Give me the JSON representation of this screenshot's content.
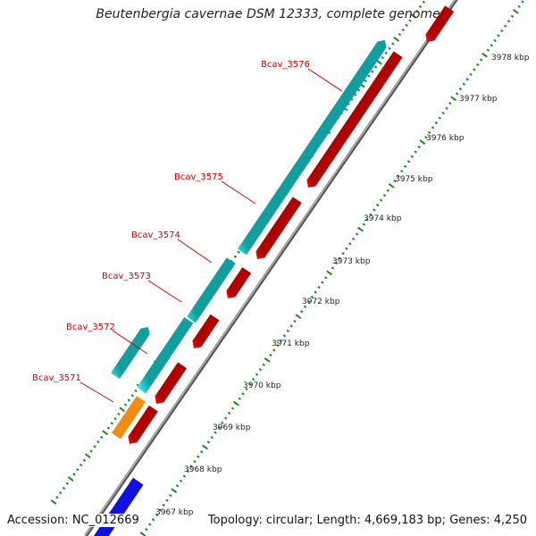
{
  "title": "Beutenbergia cavernae DSM 12333, complete genome",
  "footer": {
    "accession": "Accession: NC_012669",
    "topology": "Topology: circular",
    "length": "Length: 4,669,183 bp",
    "genes": "Genes: 4,250"
  },
  "colors": {
    "forward_cds": "#1ec8c8",
    "reverse_cds": "#e81010",
    "other_orange": "#f08c10",
    "other_blue": "#1010e0",
    "backbone": "#8a8a8a",
    "tick_green": "#1a8a1a",
    "label_red": "#cc0000"
  },
  "scale_labels": [
    "3967 kbp",
    "3968 kbp",
    "3969 kbp",
    "3970 kbp",
    "3971 kbp",
    "3972 kbp",
    "3973 kbp",
    "3974 kbp",
    "3975 kbp",
    "3976 kbp",
    "3977 kbp",
    "3978 kbp"
  ],
  "gene_labels": [
    "Bcav_3571",
    "Bcav_3572",
    "Bcav_3573",
    "Bcav_3574",
    "Bcav_3575",
    "Bcav_3576"
  ]
}
